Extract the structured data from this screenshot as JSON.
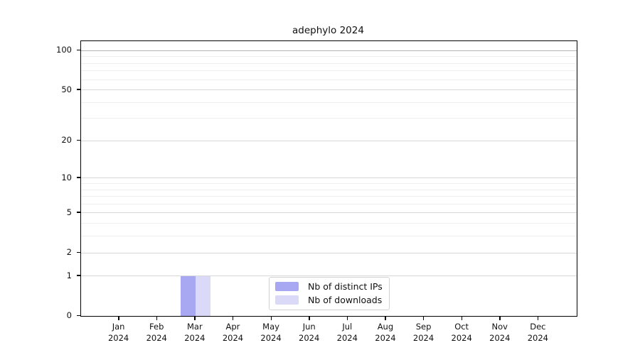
{
  "chart_data": {
    "type": "bar",
    "title": "adephylo 2024",
    "categories": [
      "Jan 2024",
      "Feb 2024",
      "Mar 2024",
      "Apr 2024",
      "May 2024",
      "Jun 2024",
      "Jul 2024",
      "Aug 2024",
      "Sep 2024",
      "Oct 2024",
      "Nov 2024",
      "Dec 2024"
    ],
    "series": [
      {
        "name": "Nb of distinct IPs",
        "color": "#a7a7f2",
        "values": [
          0,
          0,
          1,
          0,
          0,
          0,
          0,
          0,
          0,
          0,
          0,
          0
        ]
      },
      {
        "name": "Nb of downloads",
        "color": "#dadaf8",
        "values": [
          0,
          0,
          1,
          0,
          0,
          0,
          0,
          0,
          0,
          0,
          0,
          0
        ]
      }
    ],
    "xlabel": "",
    "ylabel": "",
    "yscale": "log1p",
    "ylim": [
      0,
      118
    ],
    "yticks": [
      0,
      1,
      2,
      5,
      10,
      20,
      50,
      100
    ],
    "yticks_minor": [
      3,
      4,
      6,
      7,
      8,
      9,
      30,
      40,
      60,
      70,
      80,
      90
    ],
    "grid": "horizontal",
    "legend_position": "lower center inside",
    "colors": {
      "grid_major": "#d8d8d8",
      "grid_minor": "#efefef",
      "grid_top": "#b3b3b3",
      "axis": "#000000",
      "text": "#111111",
      "background": "#ffffff"
    }
  }
}
